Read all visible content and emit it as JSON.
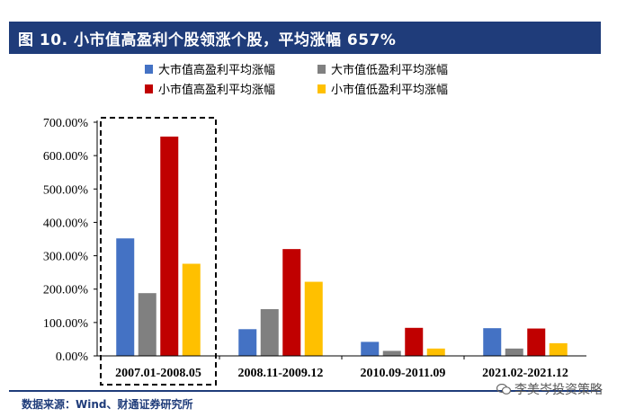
{
  "title": "图 10. 小市值高盈利个股领涨个股，平均涨幅 657%",
  "source": "数据来源：Wind、财通证券研究所",
  "watermark": "李美岑投资策略",
  "chart_data": {
    "type": "bar",
    "title": "图 10. 小市值高盈利个股领涨个股，平均涨幅 657%",
    "categories": [
      "2007.01-2008.05",
      "2008.11-2009.12",
      "2010.09-2011.09",
      "2021.02-2021.12"
    ],
    "series": [
      {
        "name": "大市值高盈利平均涨幅",
        "color": "#4472c4",
        "values": [
          352,
          80,
          42,
          83
        ]
      },
      {
        "name": "大市值低盈利平均涨幅",
        "color": "#808080",
        "values": [
          188,
          140,
          15,
          22
        ]
      },
      {
        "name": "小市值高盈利平均涨幅",
        "color": "#c00000",
        "values": [
          657,
          320,
          84,
          82
        ]
      },
      {
        "name": "小市值低盈利平均涨幅",
        "color": "#ffc000",
        "values": [
          276,
          222,
          22,
          38
        ]
      }
    ],
    "ylim": [
      0,
      700
    ],
    "yticks": [
      "0.00%",
      "100.00%",
      "200.00%",
      "300.00%",
      "400.00%",
      "500.00%",
      "600.00%",
      "700.00%"
    ],
    "ytick_values": [
      0,
      100,
      200,
      300,
      400,
      500,
      600,
      700
    ],
    "highlight_category": "2007.01-2008.05",
    "legend": "top"
  }
}
